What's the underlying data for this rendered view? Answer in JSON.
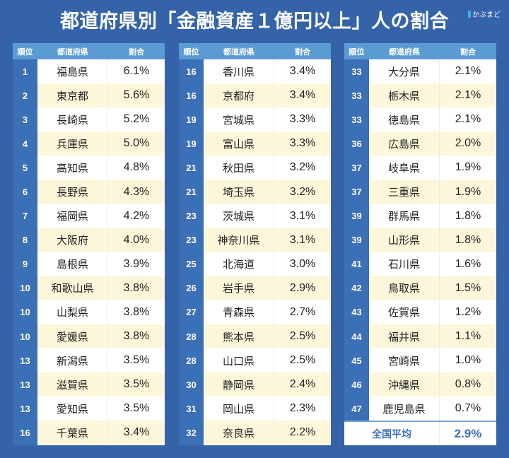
{
  "title": "都道府県別「金融資産１億円以上」人の割合",
  "brand": "かぶまど",
  "headers": {
    "rank": "順位",
    "prefecture": "都道府県",
    "ratio": "割合"
  },
  "tables": [
    {
      "rows": [
        {
          "rank": "1",
          "prefecture": "福島県",
          "ratio": "6.1%"
        },
        {
          "rank": "2",
          "prefecture": "東京都",
          "ratio": "5.6%"
        },
        {
          "rank": "3",
          "prefecture": "長崎県",
          "ratio": "5.2%"
        },
        {
          "rank": "4",
          "prefecture": "兵庫県",
          "ratio": "5.0%"
        },
        {
          "rank": "5",
          "prefecture": "高知県",
          "ratio": "4.8%"
        },
        {
          "rank": "6",
          "prefecture": "長野県",
          "ratio": "4.3%"
        },
        {
          "rank": "7",
          "prefecture": "福岡県",
          "ratio": "4.2%"
        },
        {
          "rank": "8",
          "prefecture": "大阪府",
          "ratio": "4.0%"
        },
        {
          "rank": "9",
          "prefecture": "島根県",
          "ratio": "3.9%"
        },
        {
          "rank": "10",
          "prefecture": "和歌山県",
          "ratio": "3.8%"
        },
        {
          "rank": "10",
          "prefecture": "山梨県",
          "ratio": "3.8%"
        },
        {
          "rank": "10",
          "prefecture": "愛媛県",
          "ratio": "3.8%"
        },
        {
          "rank": "13",
          "prefecture": "新潟県",
          "ratio": "3.5%"
        },
        {
          "rank": "13",
          "prefecture": "滋賀県",
          "ratio": "3.5%"
        },
        {
          "rank": "13",
          "prefecture": "愛知県",
          "ratio": "3.5%"
        },
        {
          "rank": "16",
          "prefecture": "千葉県",
          "ratio": "3.4%"
        }
      ]
    },
    {
      "rows": [
        {
          "rank": "16",
          "prefecture": "香川県",
          "ratio": "3.4%"
        },
        {
          "rank": "16",
          "prefecture": "京都府",
          "ratio": "3.4%"
        },
        {
          "rank": "19",
          "prefecture": "宮城県",
          "ratio": "3.3%"
        },
        {
          "rank": "19",
          "prefecture": "富山県",
          "ratio": "3.3%"
        },
        {
          "rank": "21",
          "prefecture": "秋田県",
          "ratio": "3.2%"
        },
        {
          "rank": "21",
          "prefecture": "埼玉県",
          "ratio": "3.2%"
        },
        {
          "rank": "23",
          "prefecture": "茨城県",
          "ratio": "3.1%"
        },
        {
          "rank": "23",
          "prefecture": "神奈川県",
          "ratio": "3.1%"
        },
        {
          "rank": "25",
          "prefecture": "北海道",
          "ratio": "3.0%"
        },
        {
          "rank": "26",
          "prefecture": "岩手県",
          "ratio": "2.9%"
        },
        {
          "rank": "27",
          "prefecture": "青森県",
          "ratio": "2.7%"
        },
        {
          "rank": "28",
          "prefecture": "熊本県",
          "ratio": "2.5%"
        },
        {
          "rank": "28",
          "prefecture": "山口県",
          "ratio": "2.5%"
        },
        {
          "rank": "30",
          "prefecture": "静岡県",
          "ratio": "2.4%"
        },
        {
          "rank": "31",
          "prefecture": "岡山県",
          "ratio": "2.3%"
        },
        {
          "rank": "32",
          "prefecture": "奈良県",
          "ratio": "2.2%"
        }
      ]
    },
    {
      "rows": [
        {
          "rank": "33",
          "prefecture": "大分県",
          "ratio": "2.1%"
        },
        {
          "rank": "33",
          "prefecture": "栃木県",
          "ratio": "2.1%"
        },
        {
          "rank": "33",
          "prefecture": "徳島県",
          "ratio": "2.1%"
        },
        {
          "rank": "36",
          "prefecture": "広島県",
          "ratio": "2.0%"
        },
        {
          "rank": "37",
          "prefecture": "岐阜県",
          "ratio": "1.9%"
        },
        {
          "rank": "37",
          "prefecture": "三重県",
          "ratio": "1.9%"
        },
        {
          "rank": "39",
          "prefecture": "群馬県",
          "ratio": "1.8%"
        },
        {
          "rank": "39",
          "prefecture": "山形県",
          "ratio": "1.8%"
        },
        {
          "rank": "41",
          "prefecture": "石川県",
          "ratio": "1.6%"
        },
        {
          "rank": "42",
          "prefecture": "鳥取県",
          "ratio": "1.5%"
        },
        {
          "rank": "43",
          "prefecture": "佐賀県",
          "ratio": "1.2%"
        },
        {
          "rank": "44",
          "prefecture": "福井県",
          "ratio": "1.1%"
        },
        {
          "rank": "45",
          "prefecture": "宮崎県",
          "ratio": "1.0%"
        },
        {
          "rank": "46",
          "prefecture": "沖縄県",
          "ratio": "0.8%"
        },
        {
          "rank": "47",
          "prefecture": "鹿児島県",
          "ratio": "0.7%"
        }
      ]
    }
  ],
  "average": {
    "label": "全国平均",
    "ratio": "2.9%"
  },
  "colors": {
    "background": "#3563aa",
    "header": "#5b9bd3",
    "rank_column": "#3b6fb6",
    "row_alt": "#fcf7db",
    "average_text": "#3a70b8"
  }
}
